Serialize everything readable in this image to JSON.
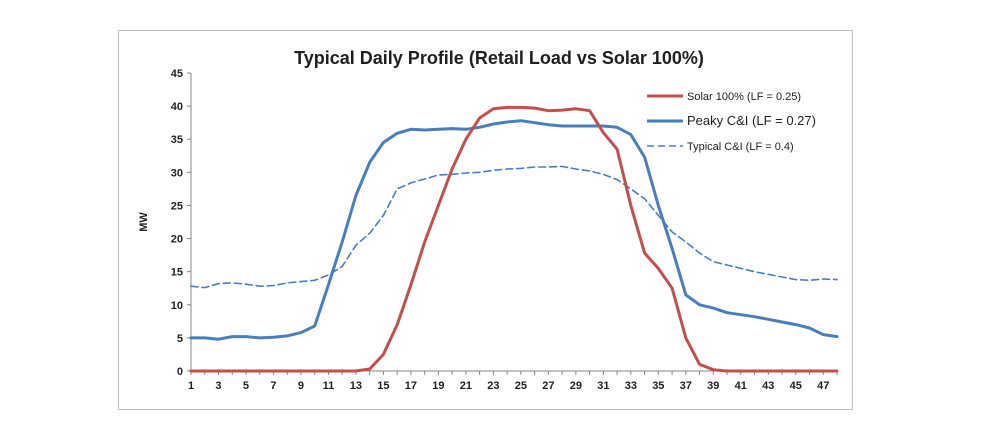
{
  "chart_data": {
    "type": "line",
    "title": "Typical Daily Profile (Retail Load vs Solar 100%)",
    "xlabel": "",
    "ylabel": "MW",
    "ylim": [
      0,
      45
    ],
    "yticks": [
      0,
      5,
      10,
      15,
      20,
      25,
      30,
      35,
      40,
      45
    ],
    "xlim": [
      1,
      48
    ],
    "xticks": [
      1,
      3,
      5,
      7,
      9,
      11,
      13,
      15,
      17,
      19,
      21,
      23,
      25,
      27,
      29,
      31,
      33,
      35,
      37,
      39,
      41,
      43,
      45,
      47
    ],
    "grid": false,
    "legend_position": "top-right",
    "x": [
      1,
      2,
      3,
      4,
      5,
      6,
      7,
      8,
      9,
      10,
      11,
      12,
      13,
      14,
      15,
      16,
      17,
      18,
      19,
      20,
      21,
      22,
      23,
      24,
      25,
      26,
      27,
      28,
      29,
      30,
      31,
      32,
      33,
      34,
      35,
      36,
      37,
      38,
      39,
      40,
      41,
      42,
      43,
      44,
      45,
      46,
      47,
      48
    ],
    "series": [
      {
        "name": "Solar 100% (LF = 0.25)",
        "color": "#c0504d",
        "style": "solid",
        "values": [
          0,
          0,
          0,
          0,
          0,
          0,
          0,
          0,
          0,
          0,
          0,
          0,
          0,
          0.3,
          2.5,
          7,
          13,
          19.5,
          25,
          30.5,
          35,
          38.2,
          39.6,
          39.8,
          39.8,
          39.7,
          39.3,
          39.4,
          39.6,
          39.3,
          36,
          33.5,
          25,
          17.8,
          15.5,
          12.5,
          5,
          1,
          0.2,
          0,
          0,
          0,
          0,
          0,
          0,
          0,
          0,
          0
        ]
      },
      {
        "name": "Peaky C&I (LF = 0.27)",
        "color": "#4a7ebb",
        "style": "solid",
        "values": [
          5,
          5,
          4.8,
          5.2,
          5.2,
          5,
          5.1,
          5.3,
          5.8,
          6.8,
          13,
          19.5,
          26.5,
          31.5,
          34.5,
          35.9,
          36.5,
          36.4,
          36.5,
          36.6,
          36.5,
          36.8,
          37.3,
          37.6,
          37.8,
          37.5,
          37.2,
          37,
          37,
          37,
          37,
          36.8,
          35.7,
          32.3,
          25,
          18.5,
          11.5,
          10,
          9.5,
          8.8,
          8.5,
          8.2,
          7.8,
          7.4,
          7,
          6.5,
          5.5,
          5.2
        ]
      },
      {
        "name": "Typical C&I (LF = 0.4)",
        "color": "#4a7ebb",
        "style": "dashed",
        "values": [
          12.8,
          12.6,
          13.2,
          13.3,
          13.1,
          12.8,
          12.9,
          13.3,
          13.5,
          13.7,
          14.5,
          15.8,
          19,
          20.8,
          23.5,
          27.5,
          28.4,
          29,
          29.6,
          29.7,
          29.9,
          30,
          30.3,
          30.5,
          30.6,
          30.8,
          30.8,
          30.9,
          30.5,
          30.2,
          29.7,
          28.9,
          27.5,
          26,
          23.5,
          21,
          19.5,
          17.8,
          16.5,
          16,
          15.5,
          15,
          14.6,
          14.2,
          13.8,
          13.7,
          13.9,
          13.8
        ]
      }
    ]
  }
}
